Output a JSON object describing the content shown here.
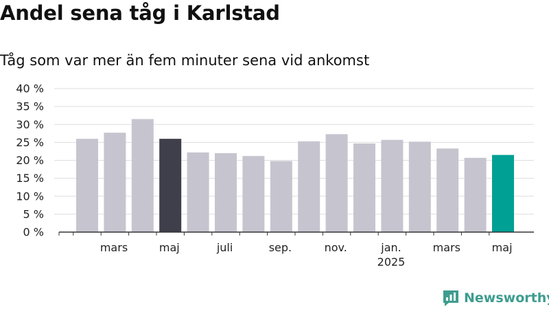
{
  "title": "Andel sena tåg i Karlstad",
  "subtitle": "Tåg som var mer än fem minuter sena vid ankomst",
  "brand": {
    "name": "Newsworthy",
    "color": "#3d9d8f"
  },
  "colors": {
    "bar_default": "#c6c5cf",
    "bar_highlight_dark": "#3f3e4b",
    "bar_highlight_teal": "#00a094",
    "grid": "#dddddd",
    "axis": "#333333"
  },
  "chart_data": {
    "type": "bar",
    "x_tick_labels": [
      {
        "label": "mars",
        "year": ""
      },
      {
        "label": "maj",
        "year": ""
      },
      {
        "label": "juli",
        "year": ""
      },
      {
        "label": "sep.",
        "year": ""
      },
      {
        "label": "nov.",
        "year": ""
      },
      {
        "label": "jan.",
        "year": "2025"
      },
      {
        "label": "mars",
        "year": ""
      },
      {
        "label": "maj",
        "year": ""
      }
    ],
    "values": [
      26,
      27.7,
      31.5,
      26,
      22.2,
      22,
      21.2,
      19.8,
      25.3,
      27.3,
      24.7,
      25.7,
      25.2,
      23.3,
      20.7,
      21.5
    ],
    "highlight": [
      {
        "index": 3,
        "color": "#3f3e4b"
      },
      {
        "index": 15,
        "color": "#00a094"
      }
    ],
    "y_ticks": [
      {
        "value": 0,
        "label": "0 %"
      },
      {
        "value": 5,
        "label": "5 %"
      },
      {
        "value": 10,
        "label": "10 %"
      },
      {
        "value": 15,
        "label": "15 %"
      },
      {
        "value": 20,
        "label": "20 %"
      },
      {
        "value": 25,
        "label": "25 %"
      },
      {
        "value": 30,
        "label": "30 %"
      },
      {
        "value": 35,
        "label": "35 %"
      },
      {
        "value": 40,
        "label": "40 %"
      }
    ],
    "ylim": [
      0,
      40
    ],
    "grid": true,
    "legend": false
  }
}
